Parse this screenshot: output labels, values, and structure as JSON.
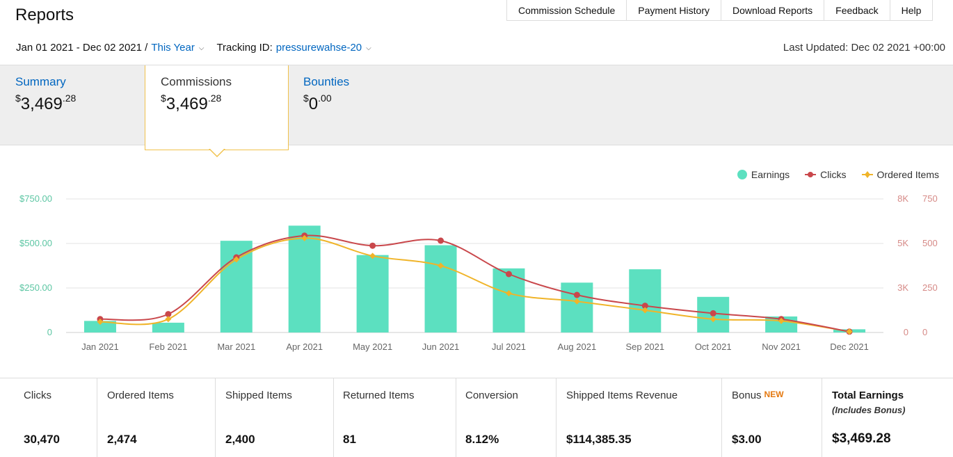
{
  "header": {
    "title": "Reports",
    "nav": [
      "Commission Schedule",
      "Payment History",
      "Download Reports",
      "Feedback",
      "Help"
    ]
  },
  "filters": {
    "date_range": "Jan 01 2021 - Dec 02 2021 /",
    "period": "This Year",
    "tracking_label": "Tracking ID:",
    "tracking_id": "pressurewahse-20",
    "last_updated": "Last Updated: Dec 02 2021 +00:00"
  },
  "tabs": {
    "summary": {
      "label": "Summary",
      "currency": "$",
      "whole": "3,469",
      "cents": ".28"
    },
    "commissions": {
      "label": "Commissions",
      "currency": "$",
      "whole": "3,469",
      "cents": ".28"
    },
    "bounties": {
      "label": "Bounties",
      "currency": "$",
      "whole": "0",
      "cents": ".00"
    }
  },
  "legend": {
    "earnings": "Earnings",
    "clicks": "Clicks",
    "ordered": "Ordered Items"
  },
  "colors": {
    "earnings": "#5ce0c0",
    "clicks": "#c9474b",
    "ordered": "#f0b429",
    "link": "#0066c0",
    "accent": "#f0c14b"
  },
  "chart_data": {
    "type": "bar",
    "categories": [
      "Jan 2021",
      "Feb 2021",
      "Mar 2021",
      "Apr 2021",
      "May 2021",
      "Jun 2021",
      "Jul 2021",
      "Aug 2021",
      "Sep 2021",
      "Oct 2021",
      "Nov 2021",
      "Dec 2021"
    ],
    "series": [
      {
        "name": "Earnings",
        "type": "bar",
        "axis": "left",
        "values": [
          65,
          55,
          515,
          600,
          435,
          490,
          360,
          280,
          355,
          200,
          90,
          18
        ]
      },
      {
        "name": "Clicks",
        "type": "line",
        "axis": "right-1",
        "values": [
          800,
          1100,
          4500,
          5800,
          5200,
          5500,
          3500,
          2250,
          1600,
          1150,
          800,
          50
        ]
      },
      {
        "name": "Ordered Items",
        "type": "line",
        "axis": "right-2",
        "values": [
          60,
          75,
          410,
          530,
          430,
          375,
          220,
          175,
          125,
          75,
          65,
          5
        ]
      }
    ],
    "y_left": {
      "ylim": [
        0,
        750
      ],
      "ticks": [
        "0",
        "$250.00",
        "$500.00",
        "$750.00"
      ]
    },
    "y_right_1": {
      "ylim": [
        0,
        8000
      ],
      "ticks": [
        "0",
        "3K",
        "5K",
        "8K"
      ]
    },
    "y_right_2": {
      "ylim": [
        0,
        750
      ],
      "ticks": [
        "0",
        "250",
        "500",
        "750"
      ]
    },
    "grid": true,
    "legend_position": "top-right"
  },
  "stats": [
    {
      "label": "Clicks",
      "value": "30,470"
    },
    {
      "label": "Ordered Items",
      "value": "2,474"
    },
    {
      "label": "Shipped Items",
      "value": "2,400"
    },
    {
      "label": "Returned Items",
      "value": "81"
    },
    {
      "label": "Conversion",
      "value": "8.12%"
    },
    {
      "label": "Shipped Items Revenue",
      "value": "$114,385.35"
    },
    {
      "label": "Bonus",
      "badge": "NEW",
      "value": "$3.00"
    },
    {
      "label": "Total Earnings",
      "sublabel": "(Includes Bonus)",
      "value": "$3,469.28"
    }
  ]
}
